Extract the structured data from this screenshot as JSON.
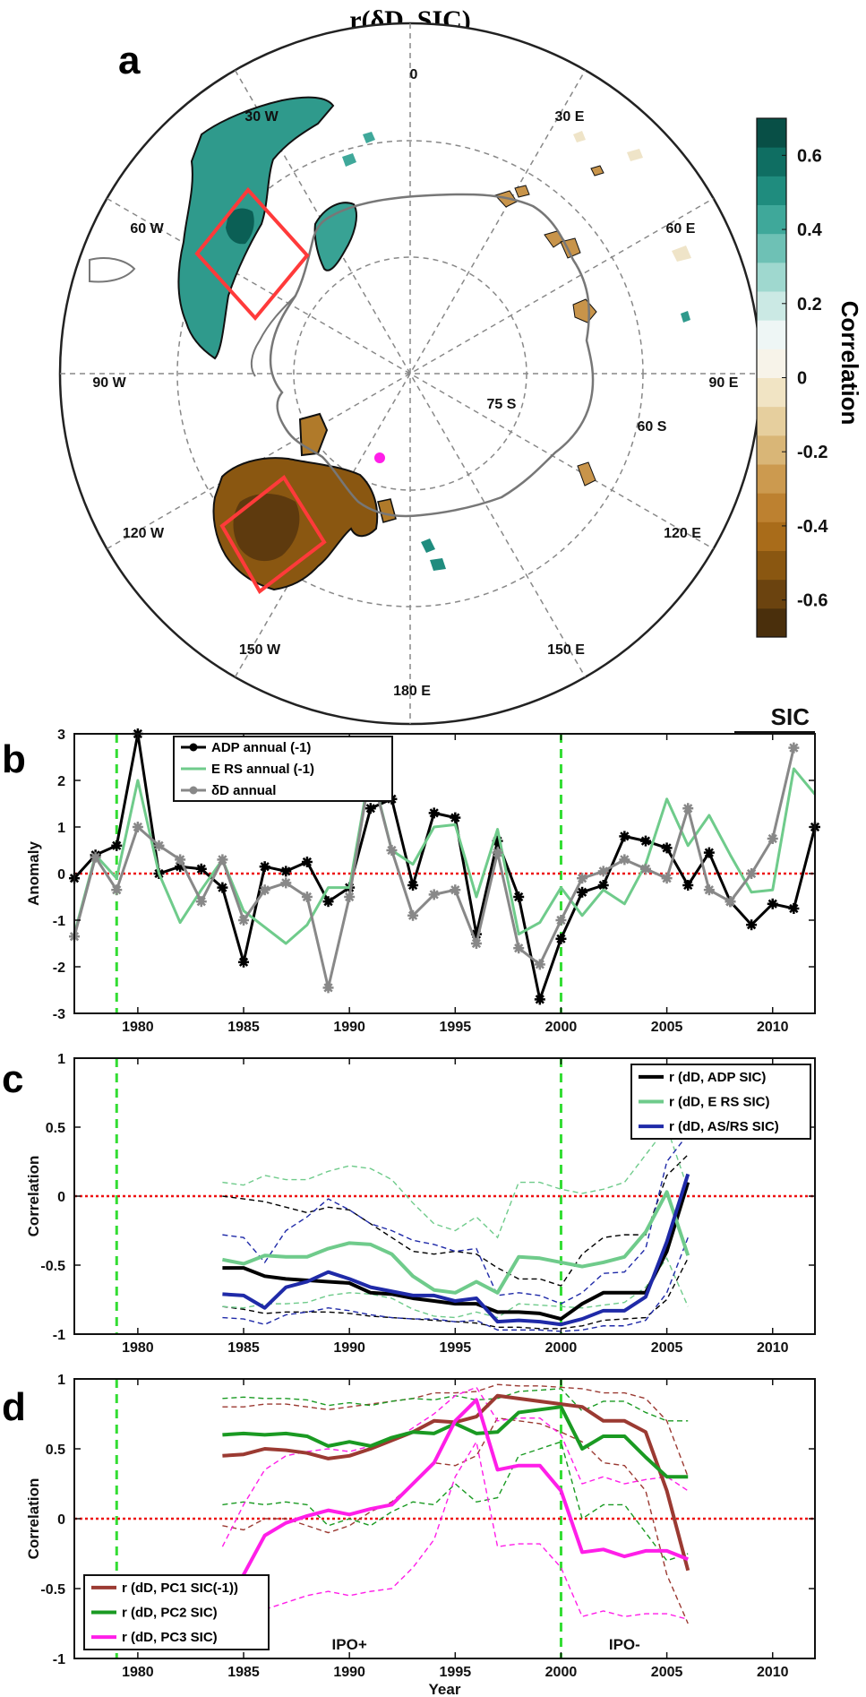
{
  "title": "r(δD, SIC)",
  "panels": {
    "a": "a",
    "b": "b",
    "c": "c",
    "d": "d"
  },
  "map": {
    "lon_labels": [
      "0",
      "30 E",
      "60 E",
      "90 E",
      "120 E",
      "150 E",
      "180 E",
      "150 W",
      "120 W",
      "90 W",
      "60 W",
      "30 W"
    ],
    "lat_labels": [
      "75 S",
      "60 S"
    ],
    "colorbar": {
      "label": "Correlation",
      "ticks": [
        "0.6",
        "0.4",
        "0.2",
        "0",
        "-0.2",
        "-0.4",
        "-0.6"
      ],
      "range": [
        -0.7,
        0.7
      ],
      "colors": [
        "#4a2f0c",
        "#6b430f",
        "#8a5711",
        "#a96c1a",
        "#bd8130",
        "#cc9a4f",
        "#d9b677",
        "#e6cf9e",
        "#f1e4c4",
        "#f7f3e9",
        "#eef6f5",
        "#cbe9e4",
        "#9fd8cf",
        "#6ec1b5",
        "#3fa89a",
        "#1f8c7e",
        "#0f6e62",
        "#084f46"
      ]
    }
  },
  "chart_data": [
    {
      "type": "line",
      "panel": "b",
      "corner_label": "SIC",
      "xlim": [
        1977,
        2012
      ],
      "ylim": [
        -3,
        3
      ],
      "xticks": [
        1980,
        1985,
        1990,
        1995,
        2000,
        2005,
        2010
      ],
      "yticks": [
        -3,
        -2,
        -1,
        0,
        1,
        2,
        3
      ],
      "ylabel": "Anomaly",
      "xlabel": "",
      "vlines": [
        1979,
        2000
      ],
      "hline": 0,
      "series": [
        {
          "name": "ADP annual (-1)",
          "color": "#000000",
          "marker": "star",
          "x": [
            1977,
            1978,
            1979,
            1980,
            1981,
            1982,
            1983,
            1984,
            1985,
            1986,
            1987,
            1988,
            1989,
            1990,
            1991,
            1992,
            1993,
            1994,
            1995,
            1996,
            1997,
            1998,
            1999,
            2000,
            2001,
            2002,
            2003,
            2004,
            2005,
            2006,
            2007,
            2008,
            2009,
            2010,
            2011,
            2012
          ],
          "values": [
            -0.1,
            0.4,
            0.6,
            3.0,
            0.0,
            0.15,
            0.1,
            -0.3,
            -1.9,
            0.15,
            0.05,
            0.25,
            -0.6,
            -0.3,
            1.4,
            1.6,
            -0.25,
            1.3,
            1.2,
            -1.3,
            0.7,
            -0.5,
            -2.7,
            -1.4,
            -0.4,
            -0.25,
            0.8,
            0.7,
            0.55,
            -0.25,
            0.45,
            -0.6,
            -1.1,
            -0.65,
            -0.75,
            1.0
          ]
        },
        {
          "name": "E RS annual (-1)",
          "color": "#6fcb8b",
          "marker": "none",
          "x": [
            1977,
            1978,
            1979,
            1980,
            1981,
            1982,
            1983,
            1984,
            1985,
            1986,
            1987,
            1988,
            1989,
            1990,
            1991,
            1992,
            1993,
            1994,
            1995,
            1996,
            1997,
            1998,
            1999,
            2000,
            2001,
            2002,
            2003,
            2004,
            2005,
            2006,
            2007,
            2008,
            2009,
            2010,
            2011,
            2012
          ],
          "values": [
            -1.3,
            0.4,
            -0.1,
            2.0,
            0.0,
            -1.05,
            -0.35,
            0.3,
            -0.8,
            -1.15,
            -1.5,
            -1.1,
            -0.3,
            -0.3,
            2.3,
            0.5,
            0.2,
            1.0,
            1.05,
            -0.5,
            0.95,
            -1.3,
            -1.05,
            -0.3,
            -0.9,
            -0.35,
            -0.65,
            0.2,
            1.6,
            0.6,
            1.25,
            0.4,
            -0.4,
            -0.35,
            2.25,
            1.7
          ]
        },
        {
          "name": "δD annual",
          "color": "#888888",
          "marker": "star",
          "x": [
            1977,
            1978,
            1979,
            1980,
            1981,
            1982,
            1983,
            1984,
            1985,
            1986,
            1987,
            1988,
            1989,
            1990,
            1991,
            1992,
            1993,
            1994,
            1995,
            1996,
            1997,
            1998,
            1999,
            2000,
            2001,
            2002,
            2003,
            2004,
            2005,
            2006,
            2007,
            2008,
            2009,
            2010,
            2011
          ],
          "values": [
            -1.35,
            0.35,
            -0.35,
            1.0,
            0.6,
            0.3,
            -0.6,
            0.3,
            -1.0,
            -0.35,
            -0.2,
            -0.5,
            -2.45,
            -0.5,
            2.25,
            0.5,
            -0.9,
            -0.45,
            -0.35,
            -1.5,
            0.45,
            -1.6,
            -1.95,
            -1.0,
            -0.1,
            0.05,
            0.3,
            0.1,
            -0.1,
            1.4,
            -0.35,
            -0.6,
            0.0,
            0.75,
            2.7
          ]
        }
      ]
    },
    {
      "type": "line",
      "panel": "c",
      "xlim": [
        1977,
        2012
      ],
      "ylim": [
        -1,
        1
      ],
      "xticks": [
        1980,
        1985,
        1990,
        1995,
        2000,
        2005,
        2010
      ],
      "yticks": [
        -1,
        -0.5,
        0,
        0.5,
        1
      ],
      "ylabel": "Correlation",
      "xlabel": "",
      "vlines": [
        1979,
        2000
      ],
      "hline": 0,
      "series": [
        {
          "name": "r (dD, ADP SIC)",
          "color": "#000000",
          "x": [
            1984,
            1985,
            1986,
            1987,
            1988,
            1989,
            1990,
            1991,
            1992,
            1993,
            1994,
            1995,
            1996,
            1997,
            1998,
            1999,
            2000,
            2001,
            2002,
            2003,
            2004,
            2005,
            2006
          ],
          "values": [
            -0.52,
            -0.52,
            -0.58,
            -0.6,
            -0.61,
            -0.62,
            -0.63,
            -0.7,
            -0.71,
            -0.74,
            -0.76,
            -0.78,
            -0.78,
            -0.84,
            -0.84,
            -0.85,
            -0.89,
            -0.78,
            -0.7,
            -0.7,
            -0.7,
            -0.4,
            0.1
          ]
        },
        {
          "name": "r (dD, E RS SIC)",
          "color": "#6fcb8b",
          "x": [
            1984,
            1985,
            1986,
            1987,
            1988,
            1989,
            1990,
            1991,
            1992,
            1993,
            1994,
            1995,
            1996,
            1997,
            1998,
            1999,
            2000,
            2001,
            2002,
            2003,
            2004,
            2005,
            2006
          ],
          "values": [
            -0.46,
            -0.49,
            -0.43,
            -0.44,
            -0.44,
            -0.38,
            -0.34,
            -0.35,
            -0.42,
            -0.58,
            -0.68,
            -0.7,
            -0.62,
            -0.7,
            -0.44,
            -0.45,
            -0.48,
            -0.51,
            -0.48,
            -0.44,
            -0.26,
            0.03,
            -0.43
          ]
        },
        {
          "name": "r (dD, AS/RS SIC)",
          "color": "#1f2aa8",
          "x": [
            1984,
            1985,
            1986,
            1987,
            1988,
            1989,
            1990,
            1991,
            1992,
            1993,
            1994,
            1995,
            1996,
            1997,
            1998,
            1999,
            2000,
            2001,
            2002,
            2003,
            2004,
            2005,
            2006
          ],
          "values": [
            -0.71,
            -0.72,
            -0.81,
            -0.66,
            -0.62,
            -0.55,
            -0.6,
            -0.66,
            -0.69,
            -0.72,
            -0.72,
            -0.76,
            -0.74,
            -0.91,
            -0.9,
            -0.91,
            -0.93,
            -0.89,
            -0.83,
            -0.83,
            -0.73,
            -0.33,
            0.16
          ]
        }
      ],
      "confidence_bounds": [
        {
          "color": "#000000",
          "upper": [
            0.0,
            -0.02,
            -0.04,
            -0.08,
            -0.12,
            -0.08,
            -0.1,
            -0.2,
            -0.3,
            -0.4,
            -0.42,
            -0.4,
            -0.42,
            -0.52,
            -0.6,
            -0.6,
            -0.65,
            -0.42,
            -0.3,
            -0.28,
            -0.28,
            0.15,
            0.3
          ],
          "lower": [
            -0.8,
            -0.82,
            -0.85,
            -0.84,
            -0.84,
            -0.84,
            -0.85,
            -0.87,
            -0.88,
            -0.89,
            -0.9,
            -0.91,
            -0.92,
            -0.95,
            -0.95,
            -0.96,
            -0.96,
            -0.94,
            -0.9,
            -0.89,
            -0.88,
            -0.75,
            -0.45
          ]
        },
        {
          "color": "#6fcb8b",
          "upper": [
            0.1,
            0.08,
            0.15,
            0.12,
            0.12,
            0.18,
            0.22,
            0.2,
            0.12,
            -0.05,
            -0.2,
            -0.25,
            -0.15,
            -0.3,
            0.1,
            0.1,
            0.05,
            0.02,
            0.05,
            0.1,
            0.3,
            0.5,
            0.05
          ],
          "lower": [
            -0.8,
            -0.81,
            -0.78,
            -0.78,
            -0.77,
            -0.72,
            -0.7,
            -0.71,
            -0.74,
            -0.82,
            -0.87,
            -0.88,
            -0.84,
            -0.88,
            -0.78,
            -0.79,
            -0.8,
            -0.81,
            -0.79,
            -0.77,
            -0.66,
            -0.45,
            -0.8
          ]
        },
        {
          "color": "#1f2aa8",
          "upper": [
            -0.28,
            -0.3,
            -0.48,
            -0.25,
            -0.15,
            -0.02,
            -0.1,
            -0.2,
            -0.25,
            -0.32,
            -0.35,
            -0.4,
            -0.38,
            -0.72,
            -0.7,
            -0.72,
            -0.78,
            -0.7,
            -0.56,
            -0.55,
            -0.38,
            0.25,
            0.45
          ],
          "lower": [
            -0.88,
            -0.89,
            -0.93,
            -0.86,
            -0.84,
            -0.81,
            -0.83,
            -0.86,
            -0.88,
            -0.89,
            -0.89,
            -0.91,
            -0.9,
            -0.97,
            -0.97,
            -0.97,
            -0.98,
            -0.97,
            -0.94,
            -0.94,
            -0.9,
            -0.7,
            -0.3
          ]
        }
      ]
    },
    {
      "type": "line",
      "panel": "d",
      "xlim": [
        1977,
        2012
      ],
      "ylim": [
        -1,
        1
      ],
      "xticks": [
        1980,
        1985,
        1990,
        1995,
        2000,
        2005,
        2010
      ],
      "yticks": [
        -1,
        -0.5,
        0,
        0.5,
        1
      ],
      "ylabel": "Correlation",
      "xlabel": "Year",
      "vlines": [
        1979,
        2000
      ],
      "hline": 0,
      "annotations": [
        {
          "text": "IPO+",
          "x": 1990
        },
        {
          "text": "IPO-",
          "x": 2003
        }
      ],
      "series": [
        {
          "name": "r (dD, PC1 SIC(-1))",
          "color": "#9b3a32",
          "x": [
            1984,
            1985,
            1986,
            1987,
            1988,
            1989,
            1990,
            1991,
            1992,
            1993,
            1994,
            1995,
            1996,
            1997,
            1998,
            1999,
            2000,
            2001,
            2002,
            2003,
            2004,
            2005,
            2006
          ],
          "values": [
            0.45,
            0.46,
            0.5,
            0.49,
            0.47,
            0.43,
            0.45,
            0.5,
            0.56,
            0.62,
            0.7,
            0.69,
            0.73,
            0.88,
            0.86,
            0.84,
            0.82,
            0.8,
            0.7,
            0.7,
            0.62,
            0.2,
            -0.37
          ]
        },
        {
          "name": "r (dD, PC2 SIC)",
          "color": "#1a9a22",
          "x": [
            1984,
            1985,
            1986,
            1987,
            1988,
            1989,
            1990,
            1991,
            1992,
            1993,
            1994,
            1995,
            1996,
            1997,
            1998,
            1999,
            2000,
            2001,
            2002,
            2003,
            2004,
            2005,
            2006
          ],
          "values": [
            0.6,
            0.61,
            0.6,
            0.61,
            0.59,
            0.52,
            0.55,
            0.52,
            0.58,
            0.62,
            0.61,
            0.68,
            0.61,
            0.62,
            0.76,
            0.78,
            0.8,
            0.5,
            0.59,
            0.59,
            0.44,
            0.3,
            0.3
          ]
        },
        {
          "name": "r (dD, PC3 SIC)",
          "color": "#ff1ee8",
          "x": [
            1984,
            1985,
            1986,
            1987,
            1988,
            1989,
            1990,
            1991,
            1992,
            1993,
            1994,
            1995,
            1996,
            1997,
            1998,
            1999,
            2000,
            2001,
            2002,
            2003,
            2004,
            2005,
            2006
          ],
          "values": [
            -0.62,
            -0.4,
            -0.12,
            -0.03,
            0.02,
            0.06,
            0.03,
            0.07,
            0.1,
            0.25,
            0.4,
            0.7,
            0.85,
            0.35,
            0.38,
            0.38,
            0.2,
            -0.24,
            -0.22,
            -0.27,
            -0.23,
            -0.23,
            -0.29
          ]
        }
      ],
      "confidence_bounds": [
        {
          "color": "#9b3a32",
          "upper": [
            0.8,
            0.8,
            0.82,
            0.82,
            0.8,
            0.78,
            0.8,
            0.82,
            0.84,
            0.86,
            0.9,
            0.9,
            0.91,
            0.96,
            0.95,
            0.95,
            0.94,
            0.93,
            0.9,
            0.9,
            0.86,
            0.7,
            0.3
          ],
          "lower": [
            -0.05,
            -0.08,
            0.0,
            0.0,
            -0.05,
            -0.1,
            -0.05,
            0.05,
            0.12,
            0.25,
            0.4,
            0.38,
            0.45,
            0.72,
            0.7,
            0.68,
            0.62,
            0.55,
            0.4,
            0.38,
            0.2,
            -0.4,
            -0.75
          ]
        },
        {
          "color": "#1a9a22",
          "upper": [
            0.86,
            0.87,
            0.86,
            0.86,
            0.85,
            0.81,
            0.83,
            0.81,
            0.84,
            0.86,
            0.85,
            0.88,
            0.85,
            0.86,
            0.91,
            0.92,
            0.93,
            0.77,
            0.84,
            0.84,
            0.76,
            0.7,
            0.7
          ],
          "lower": [
            0.1,
            0.12,
            0.1,
            0.12,
            0.1,
            -0.05,
            0.0,
            -0.05,
            0.05,
            0.12,
            0.1,
            0.25,
            0.12,
            0.15,
            0.45,
            0.5,
            0.55,
            0.0,
            0.1,
            0.1,
            -0.1,
            -0.3,
            -0.25
          ]
        },
        {
          "color": "#ff1ee8",
          "upper": [
            -0.2,
            0.1,
            0.35,
            0.45,
            0.48,
            0.5,
            0.48,
            0.52,
            0.55,
            0.65,
            0.75,
            0.88,
            0.94,
            0.7,
            0.72,
            0.72,
            0.6,
            0.25,
            0.3,
            0.25,
            0.28,
            0.3,
            0.2
          ],
          "lower": [
            -0.88,
            -0.78,
            -0.65,
            -0.6,
            -0.55,
            -0.52,
            -0.55,
            -0.52,
            -0.5,
            -0.35,
            -0.15,
            0.3,
            0.55,
            -0.2,
            -0.18,
            -0.18,
            -0.35,
            -0.7,
            -0.66,
            -0.7,
            -0.68,
            -0.68,
            -0.72
          ]
        }
      ]
    }
  ]
}
